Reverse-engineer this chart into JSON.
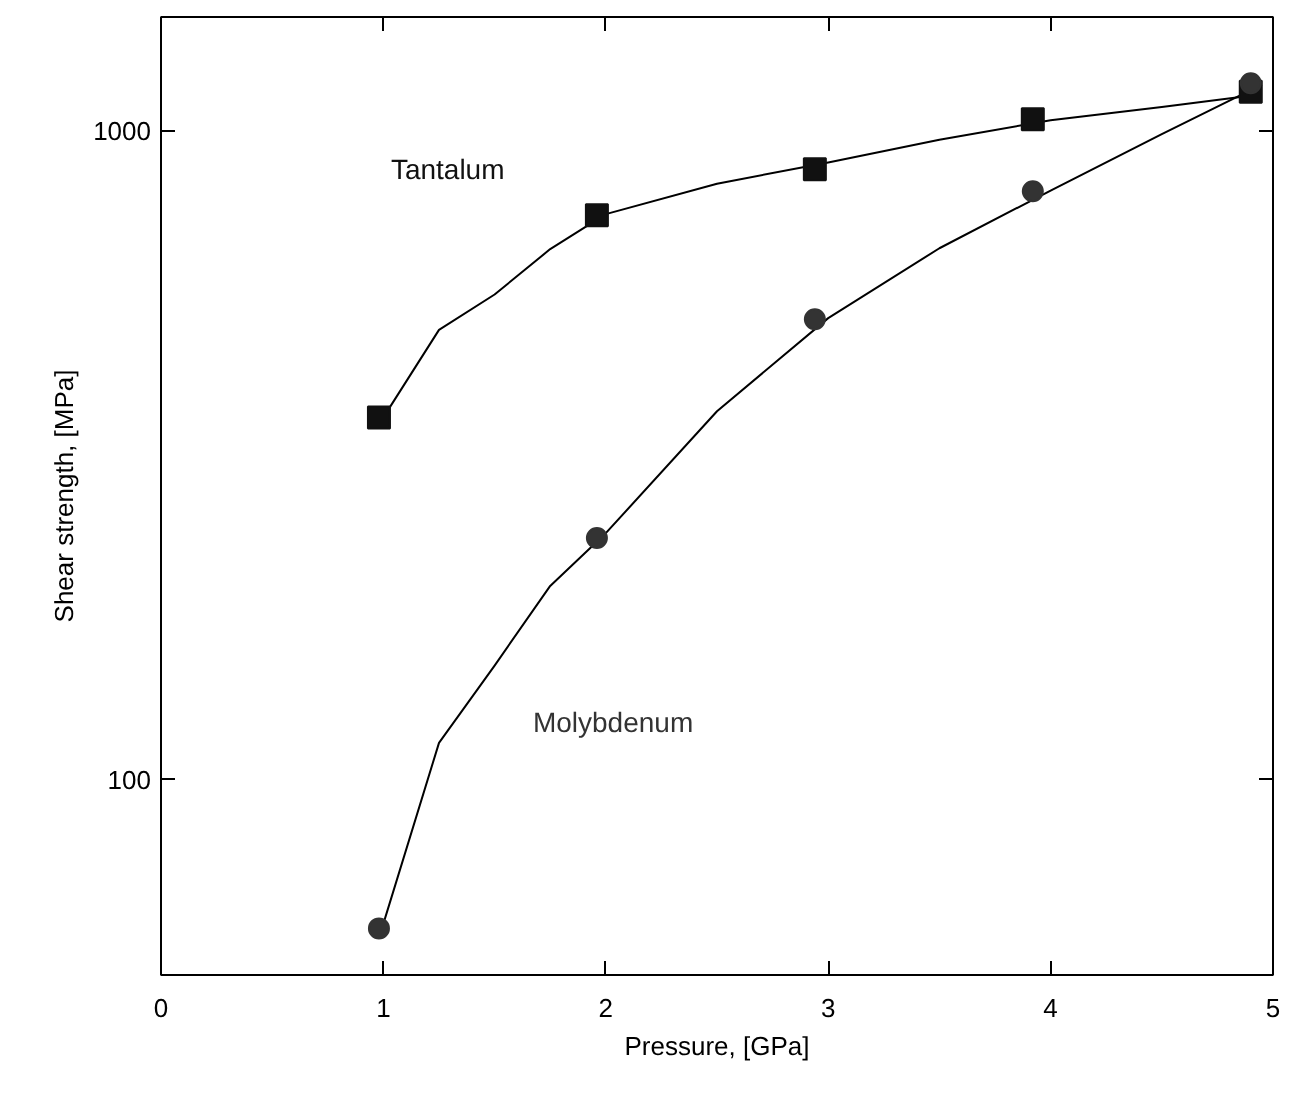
{
  "chart_data": {
    "type": "scatter",
    "xlabel": "Pressure, [GPa]",
    "ylabel": "Shear strength, [MPa]",
    "log": "y",
    "xlim": [
      0,
      5
    ],
    "ylim": [
      50,
      1500
    ],
    "xticks": [
      0,
      1,
      2,
      3,
      4,
      5
    ],
    "yticks": [
      100,
      1000
    ],
    "grid": false,
    "legend": false,
    "series": [
      {
        "name": "Tantalum",
        "color": "#111111",
        "marker": "square",
        "x": [
          0.98,
          1.96,
          2.94,
          3.92,
          4.9
        ],
        "values": [
          362,
          742,
          874,
          1043,
          1150
        ]
      },
      {
        "name": "Molybdenum",
        "color": "#333333",
        "marker": "circle",
        "x": [
          0.98,
          1.96,
          2.94,
          3.92,
          4.9
        ],
        "values": [
          59,
          236,
          513,
          808,
          1186
        ]
      },
      {
        "type": "line",
        "color": "#000000",
        "marker": "none",
        "x": [
          1.0,
          1.25,
          1.5,
          1.75,
          2.0,
          2.5,
          3.0,
          3.5,
          4.0,
          4.5,
          4.95
        ],
        "values": [
          362,
          494,
          560,
          658,
          745,
          830,
          895,
          970,
          1040,
          1090,
          1140
        ]
      },
      {
        "type": "line",
        "color": "#000000",
        "marker": "none",
        "x": [
          1.0,
          1.25,
          1.5,
          1.75,
          2.0,
          2.5,
          3.0,
          3.5,
          4.0,
          4.5,
          4.95
        ],
        "values": [
          60,
          114,
          150,
          199,
          240,
          370,
          515,
          660,
          810,
          990,
          1180
        ]
      }
    ]
  }
}
